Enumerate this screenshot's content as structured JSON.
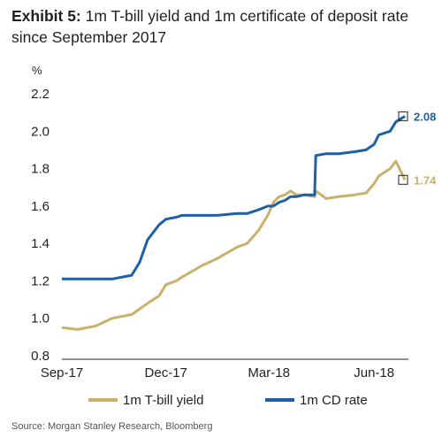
{
  "title": {
    "prefix": "Exhibit 5:",
    "text": "1m T-bill yield and 1m certificate of deposit rate since September 2017"
  },
  "source": "Source: Morgan Stanley Research, Bloomberg",
  "colors": {
    "tbill": "#c9b06b",
    "cd": "#1f5fa6",
    "axis": "#231f20"
  },
  "chart_data": {
    "type": "line",
    "ylabel": "%",
    "ylim": [
      0.8,
      2.2
    ],
    "yticks": [
      "0.8",
      "1.0",
      "1.2",
      "1.4",
      "1.6",
      "1.8",
      "2.0",
      "2.2"
    ],
    "xticks": [
      "Sep-17",
      "Dec-17",
      "Mar-18",
      "Jun-18"
    ],
    "grid": false,
    "legend_position": "bottom",
    "x": [
      "2017-09-01",
      "2017-09-15",
      "2017-10-01",
      "2017-10-15",
      "2017-11-01",
      "2017-11-08",
      "2017-11-15",
      "2017-11-25",
      "2017-12-01",
      "2017-12-10",
      "2017-12-15",
      "2018-01-01",
      "2018-01-15",
      "2018-02-01",
      "2018-02-10",
      "2018-02-20",
      "2018-02-28",
      "2018-03-05",
      "2018-03-10",
      "2018-03-15",
      "2018-03-20",
      "2018-03-25",
      "2018-04-01",
      "2018-04-10",
      "2018-04-11",
      "2018-04-20",
      "2018-05-01",
      "2018-05-15",
      "2018-05-25",
      "2018-06-01",
      "2018-06-05",
      "2018-06-15",
      "2018-06-20",
      "2018-06-28"
    ],
    "series": [
      {
        "name": "1m T-bill yield",
        "values": [
          0.95,
          0.94,
          0.96,
          1.0,
          1.02,
          1.05,
          1.08,
          1.12,
          1.18,
          1.2,
          1.22,
          1.28,
          1.32,
          1.38,
          1.4,
          1.47,
          1.55,
          1.62,
          1.65,
          1.66,
          1.68,
          1.66,
          1.66,
          1.65,
          1.68,
          1.64,
          1.65,
          1.66,
          1.67,
          1.72,
          1.76,
          1.8,
          1.84,
          1.74
        ],
        "end_label": "1.74"
      },
      {
        "name": "1m CD rate",
        "values": [
          1.21,
          1.21,
          1.21,
          1.21,
          1.23,
          1.3,
          1.42,
          1.5,
          1.53,
          1.54,
          1.55,
          1.55,
          1.55,
          1.56,
          1.56,
          1.58,
          1.6,
          1.6,
          1.62,
          1.63,
          1.65,
          1.65,
          1.66,
          1.66,
          1.87,
          1.88,
          1.88,
          1.89,
          1.9,
          1.93,
          1.98,
          2.0,
          2.05,
          2.08
        ],
        "end_label": "2.08"
      }
    ]
  }
}
